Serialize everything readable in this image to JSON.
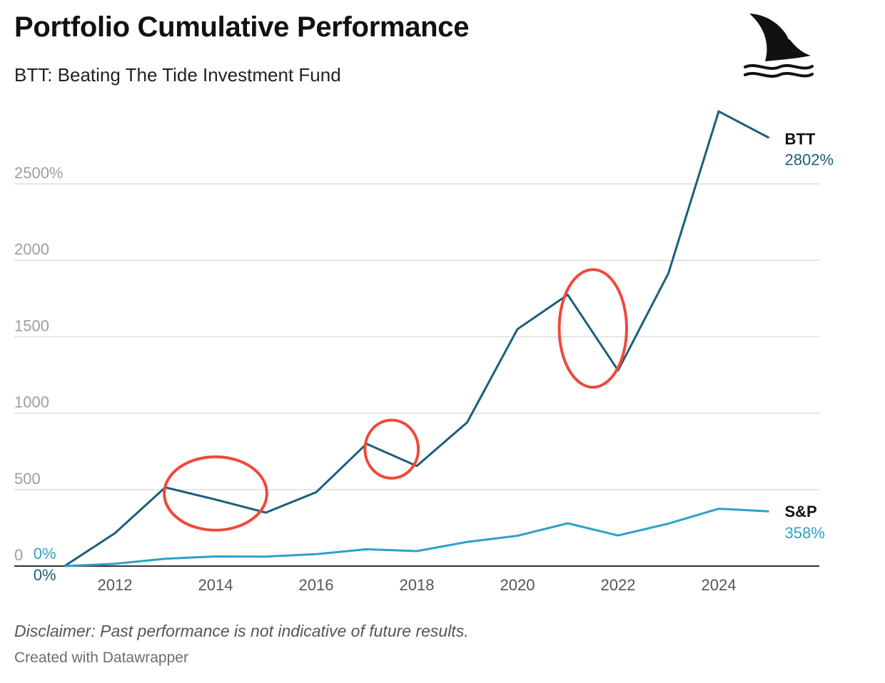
{
  "header": {
    "title": "Portfolio Cumulative Performance",
    "subtitle": "BTT: Beating The Tide Investment Fund"
  },
  "footer": {
    "disclaimer": "Disclaimer: Past performance is not indicative of future results.",
    "credit": "Created with Datawrapper"
  },
  "logo": {
    "icon": "shark-fin-icon"
  },
  "colors": {
    "btt": "#1a5f7a",
    "sp": "#2ea0c7",
    "grid": "#dddddd",
    "axis": "#333333",
    "annotation": "#f0483a"
  },
  "chart_data": {
    "type": "line",
    "title": "Portfolio Cumulative Performance",
    "subtitle": "BTT: Beating The Tide Investment Fund",
    "x": [
      2011,
      2012,
      2013,
      2014,
      2015,
      2016,
      2017,
      2018,
      2019,
      2020,
      2021,
      2022,
      2023,
      2024,
      2025
    ],
    "xlim": [
      2010,
      2026
    ],
    "x_ticks": [
      2012,
      2014,
      2016,
      2018,
      2020,
      2022,
      2024
    ],
    "ylim": [
      0,
      2800
    ],
    "y_ticks": [
      {
        "value": 0,
        "label": "0"
      },
      {
        "value": 500,
        "label": "500"
      },
      {
        "value": 1000,
        "label": "1000"
      },
      {
        "value": 1500,
        "label": "1500"
      },
      {
        "value": 2000,
        "label": "2000"
      },
      {
        "value": 2500,
        "label": "2500%"
      }
    ],
    "grid": true,
    "series": [
      {
        "name": "BTT",
        "color": "#1a5f7a",
        "values": [
          0,
          215,
          515,
          435,
          350,
          483,
          800,
          655,
          940,
          1550,
          1775,
          1280,
          1915,
          2975,
          2802
        ],
        "start_label": "0%",
        "end_label": "2802%"
      },
      {
        "name": "S&P",
        "color": "#2ea0c7",
        "values": [
          0,
          15,
          48,
          63,
          62,
          78,
          110,
          98,
          158,
          198,
          280,
          200,
          278,
          375,
          358
        ],
        "start_label": "0%",
        "end_label": "358%"
      }
    ],
    "annotations": [
      {
        "type": "ellipse",
        "x_center": 2014.0,
        "y_center": 475,
        "x_radius": 1.02,
        "y_radius": 240
      },
      {
        "type": "ellipse",
        "x_center": 2017.5,
        "y_center": 765,
        "x_radius": 0.53,
        "y_radius": 190
      },
      {
        "type": "ellipse",
        "x_center": 2021.5,
        "y_center": 1555,
        "x_radius": 0.67,
        "y_radius": 385
      }
    ]
  }
}
